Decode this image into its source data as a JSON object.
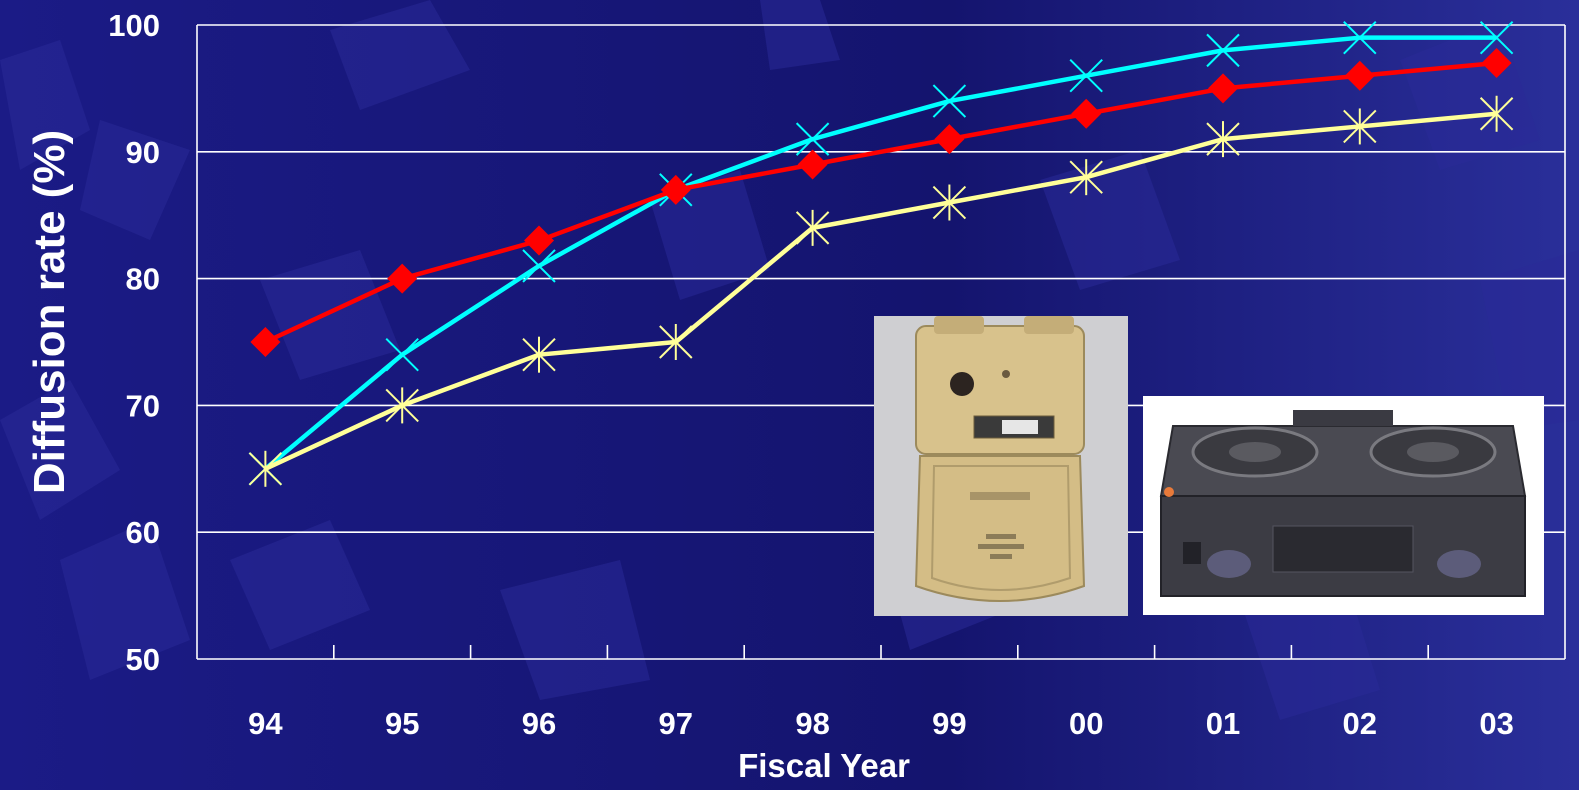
{
  "chart_data": {
    "type": "line",
    "xlabel": "Fiscal Year",
    "ylabel": "Diffusion rate (%)",
    "categories": [
      "94",
      "95",
      "96",
      "97",
      "98",
      "99",
      "00",
      "01",
      "02",
      "03"
    ],
    "ylim": [
      50,
      100
    ],
    "yticks": [
      50,
      60,
      70,
      80,
      90,
      100
    ],
    "grid": "horizontal",
    "series": [
      {
        "marker": "x",
        "color": "#00ffff",
        "values": [
          65,
          74,
          81,
          87,
          91,
          94,
          96,
          98,
          99,
          99
        ]
      },
      {
        "marker": "diamond",
        "color": "#ff0000",
        "values": [
          75,
          80,
          83,
          87,
          89,
          91,
          93,
          95,
          96,
          97
        ]
      },
      {
        "marker": "asterisk",
        "color": "#ffff99",
        "values": [
          65,
          70,
          74,
          75,
          84,
          86,
          88,
          91,
          92,
          93
        ]
      }
    ]
  },
  "colors": {
    "background": "#1a1a7a",
    "grid": "#ffffff",
    "text": "#ffffff"
  },
  "images": {
    "meter": "gas-meter-photo",
    "stove": "gas-stove-photo"
  }
}
